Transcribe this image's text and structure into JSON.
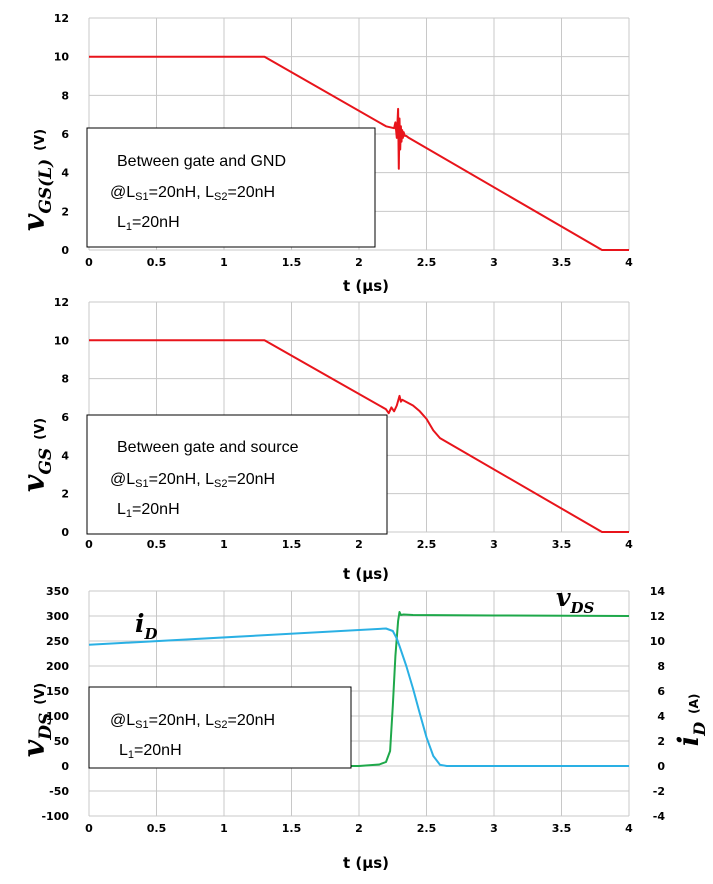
{
  "chart_data": [
    {
      "type": "line",
      "ylabel": "v",
      "ylabel_sub": "GS(L)",
      "ylabel_unit": "(V)",
      "xlabel": "t (μs)",
      "xlim": [
        0,
        4
      ],
      "ylim": [
        0,
        12
      ],
      "xticks": [
        "0",
        "0.5",
        "1",
        "1.5",
        "2",
        "2.5",
        "3",
        "3.5",
        "4"
      ],
      "yticks": [
        "0",
        "2",
        "4",
        "6",
        "8",
        "10",
        "12"
      ],
      "grid": true,
      "annotation": [
        {
          "text": "Between gate and GND"
        },
        {
          "text": "@L",
          "sub": "S1",
          "text2": "=20nH, L",
          "sub2": "S2",
          "text3": "=20nH"
        },
        {
          "text": "L",
          "sub": "1",
          "text2": "=20nH"
        }
      ],
      "series": [
        {
          "color": "#e8141b",
          "x": [
            0,
            1.3,
            2.2,
            2.26,
            2.27,
            2.28,
            2.29,
            2.295,
            2.3,
            2.305,
            2.31,
            2.315,
            2.32,
            2.325,
            2.33,
            2.34,
            2.35,
            2.37,
            3.8,
            4.0
          ],
          "y": [
            10,
            10,
            6.4,
            6.3,
            6.6,
            5.8,
            7.3,
            4.2,
            6.8,
            5.2,
            6.4,
            5.6,
            6.2,
            5.8,
            6.1,
            5.9,
            5.9,
            5.8,
            0,
            0
          ]
        }
      ]
    },
    {
      "type": "line",
      "ylabel": "v",
      "ylabel_sub": "GS",
      "ylabel_unit": "(V)",
      "xlabel": "t (μs)",
      "xlim": [
        0,
        4
      ],
      "ylim": [
        0,
        12
      ],
      "xticks": [
        "0",
        "0.5",
        "1",
        "1.5",
        "2",
        "2.5",
        "3",
        "3.5",
        "4"
      ],
      "yticks": [
        "0",
        "2",
        "4",
        "6",
        "8",
        "10",
        "12"
      ],
      "grid": true,
      "annotation": [
        {
          "text": "Between gate and source"
        },
        {
          "text": "@L",
          "sub": "S1",
          "text2": "=20nH, L",
          "sub2": "S2",
          "text3": "=20nH"
        },
        {
          "text": "L",
          "sub": "1",
          "text2": "=20nH"
        }
      ],
      "series": [
        {
          "color": "#e8141b",
          "x": [
            0,
            1.3,
            2.2,
            2.22,
            2.24,
            2.26,
            2.28,
            2.3,
            2.31,
            2.32,
            2.4,
            2.45,
            2.5,
            2.55,
            2.6,
            3.8,
            4.0
          ],
          "y": [
            10,
            10,
            6.4,
            6.2,
            6.5,
            6.3,
            6.6,
            7.1,
            6.8,
            6.9,
            6.6,
            6.3,
            5.9,
            5.3,
            4.9,
            0,
            0
          ]
        }
      ]
    },
    {
      "type": "line",
      "ylabel": "v",
      "ylabel_sub": "DS",
      "ylabel_unit": "(V)",
      "y2label": "i",
      "y2label_sub": "D",
      "y2label_unit": "(A)",
      "xlabel": "t (μs)",
      "xlim": [
        0,
        4
      ],
      "ylim": [
        -100,
        350
      ],
      "y2lim": [
        -4,
        14
      ],
      "xticks": [
        "0",
        "0.5",
        "1",
        "1.5",
        "2",
        "2.5",
        "3",
        "3.5",
        "4"
      ],
      "yticks": [
        "-100",
        "-50",
        "0",
        "50",
        "100",
        "150",
        "200",
        "250",
        "300",
        "350"
      ],
      "y2ticks": [
        "-4",
        "-2",
        "0",
        "2",
        "4",
        "6",
        "8",
        "10",
        "12",
        "14"
      ],
      "grid": true,
      "annotation": [
        {
          "text": "@L",
          "sub": "S1",
          "text2": "=20nH, L",
          "sub2": "S2",
          "text3": "=20nH"
        },
        {
          "text": "L",
          "sub": "1",
          "text2": "=20nH"
        }
      ],
      "series_labels": [
        {
          "text": "i",
          "sub": "D"
        },
        {
          "text": "v",
          "sub": "DS"
        }
      ],
      "series": [
        {
          "color": "#1ea84a",
          "axis": "left",
          "x": [
            0,
            2.0,
            2.15,
            2.2,
            2.23,
            2.25,
            2.27,
            2.29,
            2.3,
            2.31,
            2.33,
            2.4,
            3.0,
            4.0
          ],
          "y": [
            0,
            0,
            3,
            8,
            30,
            120,
            220,
            290,
            308,
            302,
            303,
            302,
            301,
            300
          ]
        },
        {
          "color": "#2ab0e4",
          "axis": "right",
          "x": [
            0,
            2.2,
            2.25,
            2.28,
            2.3,
            2.35,
            2.4,
            2.45,
            2.5,
            2.55,
            2.6,
            2.65,
            3.0,
            4.0
          ],
          "y": [
            9.7,
            11.0,
            10.8,
            10.2,
            9.6,
            8.0,
            6.2,
            4.2,
            2.3,
            0.8,
            0.1,
            0.0,
            0.0,
            0.0
          ]
        }
      ]
    }
  ]
}
